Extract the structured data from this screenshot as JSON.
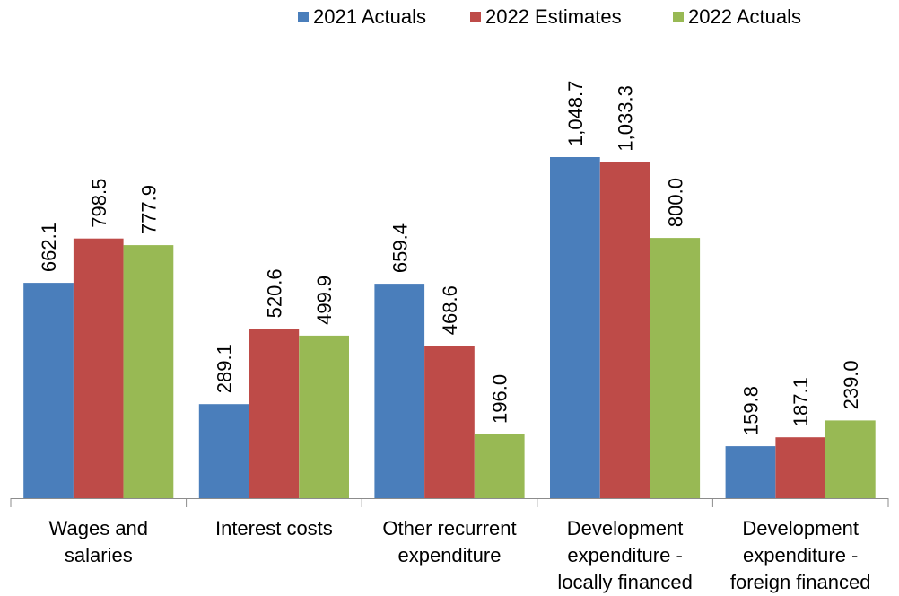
{
  "chart_data": {
    "type": "bar",
    "categories": [
      [
        "Wages and",
        "salaries"
      ],
      [
        "Interest costs"
      ],
      [
        "Other recurrent",
        "expenditure"
      ],
      [
        "Development",
        "expenditure -",
        "locally financed"
      ],
      [
        "Development",
        "expenditure -",
        "foreign financed"
      ]
    ],
    "series": [
      {
        "name": "2021 Actuals",
        "color": "#4a7ebb",
        "values": [
          662.1,
          289.1,
          659.4,
          1048.7,
          159.8
        ],
        "labels": [
          "662.1",
          "289.1",
          "659.4",
          "1,048.7",
          "159.8"
        ]
      },
      {
        "name": "2022 Estimates",
        "color": "#be4b48",
        "values": [
          798.5,
          520.6,
          468.6,
          1033.3,
          187.1
        ],
        "labels": [
          "798.5",
          "520.6",
          "468.6",
          "1,033.3",
          "187.1"
        ]
      },
      {
        "name": "2022 Actuals",
        "color": "#98b954",
        "values": [
          777.9,
          499.9,
          196.0,
          800.0,
          239.0
        ],
        "labels": [
          "777.9",
          "499.9",
          "196.0",
          "800.0",
          "239.0"
        ]
      }
    ],
    "ylim": [
      0,
      1050
    ],
    "legend_position": "top-right",
    "grid": false
  }
}
